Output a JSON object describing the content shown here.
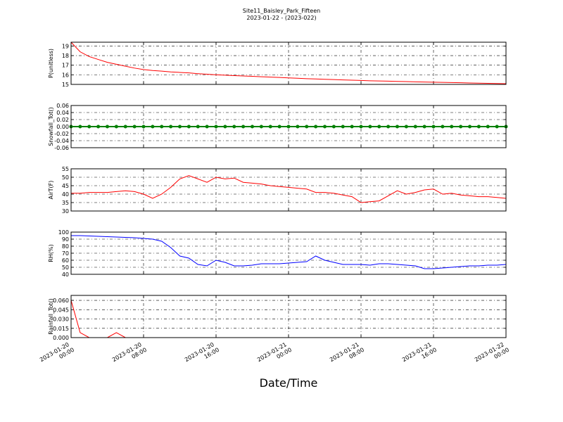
{
  "chart_data": [
    {
      "type": "line",
      "title": "Site11_Baisley_Park_Fifteen",
      "subtitle": "2023-01-22 - (2023-022)",
      "ylabel": "P(unitless)",
      "color": "#ff0000",
      "x": [
        "2023-01-20 00:00",
        "2023-01-20 01:00",
        "2023-01-20 02:00",
        "2023-01-20 03:00",
        "2023-01-20 04:00",
        "2023-01-20 05:00",
        "2023-01-20 06:00",
        "2023-01-20 07:00",
        "2023-01-20 08:00",
        "2023-01-20 09:00",
        "2023-01-20 10:00",
        "2023-01-20 11:00",
        "2023-01-20 12:00",
        "2023-01-20 13:00",
        "2023-01-20 14:00",
        "2023-01-20 15:00",
        "2023-01-20 16:00",
        "2023-01-20 17:00",
        "2023-01-20 18:00",
        "2023-01-20 19:00",
        "2023-01-20 20:00",
        "2023-01-20 21:00",
        "2023-01-20 22:00",
        "2023-01-20 23:00",
        "2023-01-21 00:00",
        "2023-01-21 01:00",
        "2023-01-21 02:00",
        "2023-01-21 03:00",
        "2023-01-21 04:00",
        "2023-01-21 05:00",
        "2023-01-21 06:00",
        "2023-01-21 07:00",
        "2023-01-21 08:00",
        "2023-01-21 09:00",
        "2023-01-21 10:00",
        "2023-01-21 11:00",
        "2023-01-21 12:00",
        "2023-01-21 13:00",
        "2023-01-21 14:00",
        "2023-01-21 15:00",
        "2023-01-21 16:00",
        "2023-01-21 17:00",
        "2023-01-21 18:00",
        "2023-01-21 19:00",
        "2023-01-21 20:00",
        "2023-01-21 21:00",
        "2023-01-21 22:00",
        "2023-01-21 23:00",
        "2023-01-22 00:00"
      ],
      "values": [
        19.4,
        18.4,
        17.9,
        17.6,
        17.3,
        17.1,
        16.9,
        16.7,
        16.55,
        16.45,
        16.38,
        16.3,
        16.25,
        16.2,
        16.12,
        16.06,
        16.0,
        15.96,
        15.92,
        15.88,
        15.84,
        15.8,
        15.76,
        15.72,
        15.68,
        15.64,
        15.6,
        15.57,
        15.53,
        15.5,
        15.47,
        15.44,
        15.41,
        15.38,
        15.36,
        15.34,
        15.31,
        15.29,
        15.27,
        15.25,
        15.23,
        15.21,
        15.19,
        15.17,
        15.15,
        15.13,
        15.11,
        15.09,
        15.07
      ],
      "xlim": [
        "2023-01-20 00:00",
        "2023-01-22 00:00"
      ],
      "xticks": [
        "2023-01-20 00:00",
        "2023-01-20 08:00",
        "2023-01-20 16:00",
        "2023-01-21 00:00",
        "2023-01-21 08:00",
        "2023-01-21 16:00",
        "2023-01-22 00:00"
      ],
      "ylim": [
        15,
        19.4
      ],
      "yticks": [
        15,
        16,
        17,
        18,
        19
      ],
      "grid": true
    },
    {
      "type": "line",
      "ylabel": "Snowfall_Tot()",
      "color": "#008000",
      "marker": "o",
      "x": [
        "2023-01-20 00:00",
        "2023-01-20 01:00",
        "2023-01-20 02:00",
        "2023-01-20 03:00",
        "2023-01-20 04:00",
        "2023-01-20 05:00",
        "2023-01-20 06:00",
        "2023-01-20 07:00",
        "2023-01-20 08:00",
        "2023-01-20 09:00",
        "2023-01-20 10:00",
        "2023-01-20 11:00",
        "2023-01-20 12:00",
        "2023-01-20 13:00",
        "2023-01-20 14:00",
        "2023-01-20 15:00",
        "2023-01-20 16:00",
        "2023-01-20 17:00",
        "2023-01-20 18:00",
        "2023-01-20 19:00",
        "2023-01-20 20:00",
        "2023-01-20 21:00",
        "2023-01-20 22:00",
        "2023-01-20 23:00",
        "2023-01-21 00:00",
        "2023-01-21 01:00",
        "2023-01-21 02:00",
        "2023-01-21 03:00",
        "2023-01-21 04:00",
        "2023-01-21 05:00",
        "2023-01-21 06:00",
        "2023-01-21 07:00",
        "2023-01-21 08:00",
        "2023-01-21 09:00",
        "2023-01-21 10:00",
        "2023-01-21 11:00",
        "2023-01-21 12:00",
        "2023-01-21 13:00",
        "2023-01-21 14:00",
        "2023-01-21 15:00",
        "2023-01-21 16:00",
        "2023-01-21 17:00",
        "2023-01-21 18:00",
        "2023-01-21 19:00",
        "2023-01-21 20:00",
        "2023-01-21 21:00",
        "2023-01-21 22:00",
        "2023-01-21 23:00",
        "2023-01-22 00:00"
      ],
      "values": [
        0,
        0,
        0,
        0,
        0,
        0,
        0,
        0,
        0,
        0,
        0,
        0,
        0,
        0,
        0,
        0,
        0,
        0,
        0,
        0,
        0,
        0,
        0,
        0,
        0,
        0,
        0,
        0,
        0,
        0,
        0,
        0,
        0,
        0,
        0,
        0,
        0,
        0,
        0,
        0,
        0,
        0,
        0,
        0,
        0,
        0,
        0,
        0,
        0
      ],
      "xlim": [
        "2023-01-20 00:00",
        "2023-01-22 00:00"
      ],
      "xticks": [
        "2023-01-20 00:00",
        "2023-01-20 08:00",
        "2023-01-20 16:00",
        "2023-01-21 00:00",
        "2023-01-21 08:00",
        "2023-01-21 16:00",
        "2023-01-22 00:00"
      ],
      "ylim": [
        -0.06,
        0.06
      ],
      "yticks": [
        -0.06,
        -0.04,
        -0.02,
        {
          "value": 0,
          "label": "0.00"
        },
        0.02,
        0.04,
        0.06
      ],
      "grid": true
    },
    {
      "type": "line",
      "ylabel": "AirT(F)",
      "color": "#ff0000",
      "x": [
        "2023-01-20 00:00",
        "2023-01-20 01:00",
        "2023-01-20 02:00",
        "2023-01-20 03:00",
        "2023-01-20 04:00",
        "2023-01-20 05:00",
        "2023-01-20 06:00",
        "2023-01-20 07:00",
        "2023-01-20 08:00",
        "2023-01-20 09:00",
        "2023-01-20 10:00",
        "2023-01-20 11:00",
        "2023-01-20 12:00",
        "2023-01-20 13:00",
        "2023-01-20 14:00",
        "2023-01-20 15:00",
        "2023-01-20 16:00",
        "2023-01-20 17:00",
        "2023-01-20 18:00",
        "2023-01-20 19:00",
        "2023-01-20 20:00",
        "2023-01-20 21:00",
        "2023-01-20 22:00",
        "2023-01-20 23:00",
        "2023-01-21 00:00",
        "2023-01-21 01:00",
        "2023-01-21 02:00",
        "2023-01-21 03:00",
        "2023-01-21 04:00",
        "2023-01-21 05:00",
        "2023-01-21 06:00",
        "2023-01-21 07:00",
        "2023-01-21 08:00",
        "2023-01-21 09:00",
        "2023-01-21 10:00",
        "2023-01-21 11:00",
        "2023-01-21 12:00",
        "2023-01-21 13:00",
        "2023-01-21 14:00",
        "2023-01-21 15:00",
        "2023-01-21 16:00",
        "2023-01-21 17:00",
        "2023-01-21 18:00",
        "2023-01-21 19:00",
        "2023-01-21 20:00",
        "2023-01-21 21:00",
        "2023-01-21 22:00",
        "2023-01-21 23:00",
        "2023-01-22 00:00"
      ],
      "values": [
        40.5,
        40.5,
        41,
        41,
        41,
        41.5,
        42,
        41.5,
        40,
        37.5,
        40,
        44,
        49,
        51,
        49,
        47,
        50,
        49,
        49.5,
        47,
        46.5,
        46,
        45,
        44.5,
        44,
        43.5,
        43,
        41,
        41,
        40.5,
        39.5,
        38.5,
        35,
        35.5,
        36,
        39,
        42,
        40,
        41,
        42.5,
        43,
        40,
        40.5,
        39.5,
        39,
        38.5,
        38.5,
        38,
        37.5
      ],
      "xlim": [
        "2023-01-20 00:00",
        "2023-01-22 00:00"
      ],
      "xticks": [
        "2023-01-20 00:00",
        "2023-01-20 08:00",
        "2023-01-20 16:00",
        "2023-01-21 00:00",
        "2023-01-21 08:00",
        "2023-01-21 16:00",
        "2023-01-22 00:00"
      ],
      "ylim": [
        30,
        55
      ],
      "yticks": [
        30,
        35,
        40,
        45,
        50,
        55
      ],
      "grid": true
    },
    {
      "type": "line",
      "ylabel": "RH(%)",
      "color": "#0000ff",
      "x": [
        "2023-01-20 00:00",
        "2023-01-20 01:00",
        "2023-01-20 02:00",
        "2023-01-20 03:00",
        "2023-01-20 04:00",
        "2023-01-20 05:00",
        "2023-01-20 06:00",
        "2023-01-20 07:00",
        "2023-01-20 08:00",
        "2023-01-20 09:00",
        "2023-01-20 10:00",
        "2023-01-20 11:00",
        "2023-01-20 12:00",
        "2023-01-20 13:00",
        "2023-01-20 14:00",
        "2023-01-20 15:00",
        "2023-01-20 16:00",
        "2023-01-20 17:00",
        "2023-01-20 18:00",
        "2023-01-20 19:00",
        "2023-01-20 20:00",
        "2023-01-20 21:00",
        "2023-01-20 22:00",
        "2023-01-20 23:00",
        "2023-01-21 00:00",
        "2023-01-21 01:00",
        "2023-01-21 02:00",
        "2023-01-21 03:00",
        "2023-01-21 04:00",
        "2023-01-21 05:00",
        "2023-01-21 06:00",
        "2023-01-21 07:00",
        "2023-01-21 08:00",
        "2023-01-21 09:00",
        "2023-01-21 10:00",
        "2023-01-21 11:00",
        "2023-01-21 12:00",
        "2023-01-21 13:00",
        "2023-01-21 14:00",
        "2023-01-21 15:00",
        "2023-01-21 16:00",
        "2023-01-21 17:00",
        "2023-01-21 18:00",
        "2023-01-21 19:00",
        "2023-01-21 20:00",
        "2023-01-21 21:00",
        "2023-01-21 22:00",
        "2023-01-21 23:00",
        "2023-01-22 00:00"
      ],
      "values": [
        95,
        95,
        94.5,
        94,
        93.5,
        93,
        92.5,
        92,
        91,
        90,
        87,
        78,
        66,
        63,
        54,
        52,
        60,
        57,
        52,
        52,
        53,
        55,
        55,
        55,
        56,
        57,
        58,
        66,
        60,
        57,
        54,
        54,
        54,
        53,
        55,
        55,
        54,
        53,
        52,
        48,
        48,
        49,
        50,
        51,
        52,
        52,
        53,
        53,
        54
      ],
      "xlim": [
        "2023-01-20 00:00",
        "2023-01-22 00:00"
      ],
      "xticks": [
        "2023-01-20 00:00",
        "2023-01-20 08:00",
        "2023-01-20 16:00",
        "2023-01-21 00:00",
        "2023-01-21 08:00",
        "2023-01-21 16:00",
        "2023-01-22 00:00"
      ],
      "ylim": [
        40,
        100
      ],
      "yticks": [
        40,
        50,
        60,
        70,
        80,
        90,
        100
      ],
      "grid": true
    },
    {
      "type": "line",
      "ylabel": "Rainfall_Tot()",
      "xlabel": "Date/Time",
      "color": "#ff0000",
      "x": [
        "2023-01-20 00:00",
        "2023-01-20 01:00",
        "2023-01-20 02:00",
        "2023-01-20 03:00",
        "2023-01-20 04:00",
        "2023-01-20 05:00",
        "2023-01-20 06:00",
        "2023-01-20 07:00",
        "2023-01-20 08:00",
        "2023-01-20 09:00",
        "2023-01-20 10:00",
        "2023-01-20 11:00",
        "2023-01-20 12:00",
        "2023-01-20 13:00",
        "2023-01-20 14:00",
        "2023-01-20 15:00",
        "2023-01-20 16:00",
        "2023-01-20 17:00",
        "2023-01-20 18:00",
        "2023-01-20 19:00",
        "2023-01-20 20:00",
        "2023-01-20 21:00",
        "2023-01-20 22:00",
        "2023-01-20 23:00",
        "2023-01-21 00:00",
        "2023-01-21 01:00",
        "2023-01-21 02:00",
        "2023-01-21 03:00",
        "2023-01-21 04:00",
        "2023-01-21 05:00",
        "2023-01-21 06:00",
        "2023-01-21 07:00",
        "2023-01-21 08:00",
        "2023-01-21 09:00",
        "2023-01-21 10:00",
        "2023-01-21 11:00",
        "2023-01-21 12:00",
        "2023-01-21 13:00",
        "2023-01-21 14:00",
        "2023-01-21 15:00",
        "2023-01-21 16:00",
        "2023-01-21 17:00",
        "2023-01-21 18:00",
        "2023-01-21 19:00",
        "2023-01-21 20:00",
        "2023-01-21 21:00",
        "2023-01-21 22:00",
        "2023-01-21 23:00",
        "2023-01-22 00:00"
      ],
      "values": [
        0.06,
        0.008,
        0,
        0,
        0,
        0.008,
        0,
        0,
        0,
        0,
        0,
        0,
        0,
        0,
        0,
        0,
        0,
        0,
        0,
        0,
        0,
        0,
        0,
        0,
        0,
        0,
        0,
        0,
        0,
        0,
        0,
        0,
        0,
        0,
        0,
        0,
        0,
        0,
        0,
        0,
        0,
        0,
        0,
        0,
        0,
        0,
        0,
        0,
        0
      ],
      "xlim": [
        "2023-01-20 00:00",
        "2023-01-22 00:00"
      ],
      "xticks": [
        "2023-01-20 00:00",
        "2023-01-20 08:00",
        "2023-01-20 16:00",
        "2023-01-21 00:00",
        "2023-01-21 08:00",
        "2023-01-21 16:00",
        "2023-01-22 00:00"
      ],
      "ylim": [
        0,
        0.068
      ],
      "yticks": [
        {
          "value": 0,
          "label": "0.000"
        },
        {
          "value": 0.015,
          "label": "0.015"
        },
        {
          "value": 0.03,
          "label": "0.030"
        },
        {
          "value": 0.045,
          "label": "0.045"
        },
        {
          "value": 0.06,
          "label": "0.060"
        }
      ],
      "grid": true
    }
  ]
}
